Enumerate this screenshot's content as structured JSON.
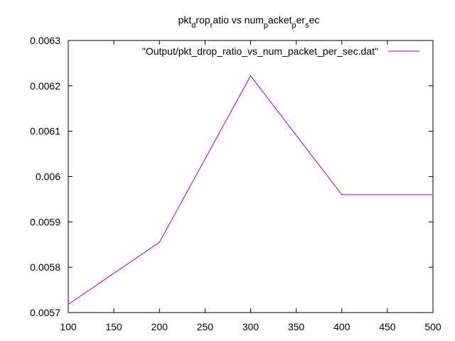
{
  "chart_data": {
    "type": "line",
    "title_parts": [
      {
        "text": "pkt",
        "sub": false
      },
      {
        "text": "d",
        "sub": true
      },
      {
        "text": "rop",
        "sub": false
      },
      {
        "text": "r",
        "sub": true
      },
      {
        "text": "atio vs num",
        "sub": false
      },
      {
        "text": "p",
        "sub": true
      },
      {
        "text": "acket",
        "sub": false
      },
      {
        "text": "p",
        "sub": true
      },
      {
        "text": "er",
        "sub": false
      },
      {
        "text": "s",
        "sub": true
      },
      {
        "text": "ec",
        "sub": false
      }
    ],
    "xlabel": "",
    "ylabel": "",
    "xlim": [
      100,
      500
    ],
    "ylim": [
      0.0057,
      0.0063
    ],
    "xticks": [
      "100",
      "150",
      "200",
      "250",
      "300",
      "350",
      "400",
      "450",
      "500"
    ],
    "yticks": [
      "0.0057",
      "0.0058",
      "0.0059",
      "0.006",
      "0.0061",
      "0.0062",
      "0.0063"
    ],
    "legend_position": "top-right",
    "grid": false,
    "series": [
      {
        "name": "\"Output/pkt_drop_ratio_vs_num_packet_per_sec.dat\"",
        "color": "#9400d3",
        "x": [
          100,
          200,
          300,
          400,
          500
        ],
        "y": [
          0.005718,
          0.005855,
          0.006222,
          0.00596,
          0.00596
        ]
      }
    ]
  }
}
